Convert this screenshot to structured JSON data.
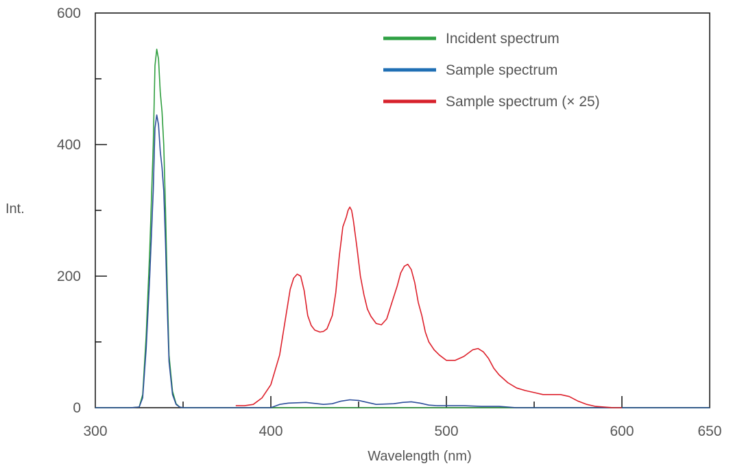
{
  "chart_data": {
    "type": "line",
    "title": "",
    "xlabel": "Wavelength (nm)",
    "ylabel": "Int.",
    "xlim": [
      300,
      650
    ],
    "ylim": [
      0,
      600
    ],
    "x_ticks": [
      300,
      400,
      500,
      600,
      650
    ],
    "x_tick_labels": [
      "300",
      "400",
      "500",
      "600",
      "650"
    ],
    "y_ticks": [
      0,
      200,
      400,
      600
    ],
    "y_tick_labels": [
      "0",
      "200",
      "400",
      "600"
    ],
    "grid": false,
    "legend_position": "top-right",
    "series": [
      {
        "name": "Incident spectrum",
        "color": "#2e9e3e",
        "legend_color": "#2ea043",
        "x": [
          300,
          320,
          325,
          327,
          329,
          331,
          333,
          334,
          335,
          336,
          337,
          338,
          339,
          340,
          341,
          342,
          344,
          346,
          348,
          350,
          355,
          380,
          400,
          420,
          450,
          500,
          530,
          560,
          600,
          650
        ],
        "y": [
          0,
          0,
          1,
          20,
          110,
          240,
          400,
          520,
          545,
          530,
          480,
          450,
          400,
          300,
          180,
          80,
          25,
          6,
          1,
          0,
          0,
          0,
          0,
          0,
          0,
          0,
          0,
          0,
          0,
          0
        ]
      },
      {
        "name": "Sample spectrum",
        "color": "#2b4d9a",
        "legend_color": "#1f6fb4",
        "x": [
          300,
          320,
          325,
          327,
          329,
          331,
          333,
          334,
          335,
          336,
          337,
          338,
          339,
          340,
          341,
          342,
          344,
          346,
          348,
          350,
          355,
          400,
          405,
          410,
          420,
          430,
          435,
          440,
          445,
          450,
          455,
          460,
          470,
          475,
          480,
          485,
          490,
          495,
          500,
          510,
          520,
          530,
          535,
          540,
          560,
          600,
          650
        ],
        "y": [
          0,
          0,
          1,
          15,
          90,
          200,
          330,
          425,
          445,
          430,
          390,
          365,
          330,
          250,
          150,
          70,
          20,
          5,
          1,
          0,
          0,
          0,
          5,
          7,
          8,
          5,
          6,
          10,
          12,
          11,
          8,
          5,
          6,
          8,
          9,
          7,
          4,
          3,
          3,
          3,
          2,
          2,
          1,
          0,
          0,
          0,
          0
        ]
      },
      {
        "name": "Sample spectrum (× 25)",
        "color": "#dd1f2a",
        "legend_color": "#d7202b",
        "x": [
          380,
          385,
          390,
          395,
          400,
          405,
          408,
          411,
          413,
          415,
          417,
          419,
          421,
          423,
          425,
          428,
          430,
          432,
          435,
          437,
          439,
          441,
          443,
          444,
          445,
          446,
          447,
          449,
          451,
          453,
          455,
          457,
          460,
          463,
          466,
          469,
          472,
          474,
          476,
          478,
          480,
          482,
          484,
          486,
          488,
          490,
          493,
          496,
          500,
          505,
          510,
          515,
          518,
          521,
          524,
          527,
          530,
          535,
          540,
          545,
          550,
          555,
          560,
          565,
          570,
          575,
          580,
          585,
          590,
          595,
          600
        ],
        "y": [
          3,
          3,
          5,
          15,
          35,
          80,
          130,
          180,
          197,
          203,
          200,
          178,
          140,
          125,
          118,
          115,
          116,
          120,
          140,
          175,
          230,
          275,
          290,
          300,
          305,
          300,
          285,
          245,
          200,
          172,
          150,
          139,
          128,
          126,
          135,
          160,
          185,
          205,
          215,
          218,
          210,
          190,
          160,
          140,
          115,
          100,
          88,
          80,
          72,
          72,
          78,
          88,
          90,
          85,
          75,
          60,
          50,
          38,
          30,
          26,
          23,
          20,
          20,
          20,
          17,
          10,
          5,
          2,
          1,
          0,
          0
        ]
      }
    ]
  }
}
